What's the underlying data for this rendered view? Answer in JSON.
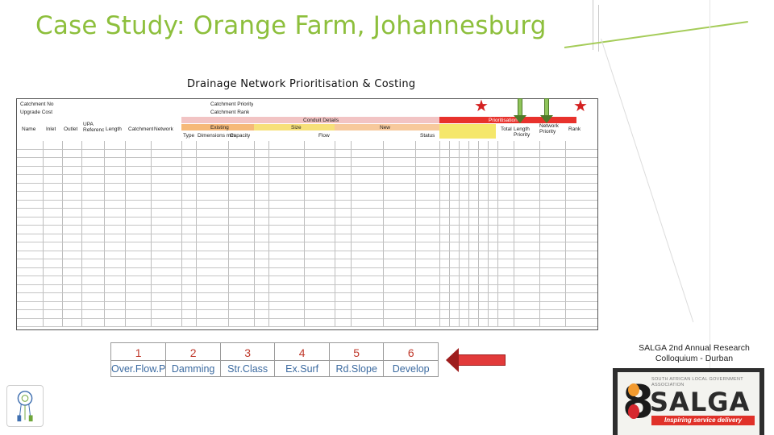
{
  "slide": {
    "title": "Case Study: Orange Farm, Johannesburg",
    "subtitle": "Drainage Network Prioritisation & Costing",
    "accent_color": "#8dbf3c"
  },
  "spreadsheet": {
    "labels": {
      "catchment_no": "Catchment No",
      "upgrade_cost": "Upgrade Cost",
      "catchment_priority": "Catchment Priority",
      "catchment_rank": "Catchment Rank",
      "conduit_details": "Conduit Details",
      "prioritisation": "Prioritisation",
      "existing": "Existing",
      "size": "Size",
      "new": "New",
      "name": "Name",
      "inlet": "Inlet",
      "outlet": "Outlet",
      "upa_reference": "UPA Reference",
      "length": "Length",
      "catchment": "Catchment",
      "network": "Network",
      "total": "Total",
      "length_priority": "Length Priority",
      "network_priority": "Network Priority",
      "rank": "Rank",
      "type": "Type",
      "dimensions_mm": "Dimensions mm",
      "capacity": "Capacity",
      "flow": "Flow",
      "status": "Status"
    },
    "header_colors": {
      "priority_red": "#e8322c",
      "existing_orange": "#f6b979",
      "size_yellow": "#f7e07a",
      "new_peach": "#f7c99c",
      "conduit_pink": "#f2c4c4",
      "rank_yellow": "#f5e76b"
    },
    "rows_note_unreadable": true
  },
  "markers": {
    "star_color": "#d42020",
    "arrow_color": "#8fc45a",
    "pointer_arrow_color": "#e23a3a"
  },
  "legend": {
    "items": [
      {
        "num": "1",
        "label": "Over.Flow.P"
      },
      {
        "num": "2",
        "label": "Damming"
      },
      {
        "num": "3",
        "label": "Str.Class"
      },
      {
        "num": "4",
        "label": "Ex.Surf"
      },
      {
        "num": "5",
        "label": "Rd.Slope"
      },
      {
        "num": "6",
        "label": "Develop"
      }
    ]
  },
  "conference": {
    "line1": "SALGA 2nd Annual Research",
    "line2": "Colloquium - Durban"
  },
  "salga_logo": {
    "association": "SOUTH AFRICAN LOCAL GOVERNMENT ASSOCIATION",
    "name": "SALGA",
    "tagline": "Inspiring service delivery"
  }
}
